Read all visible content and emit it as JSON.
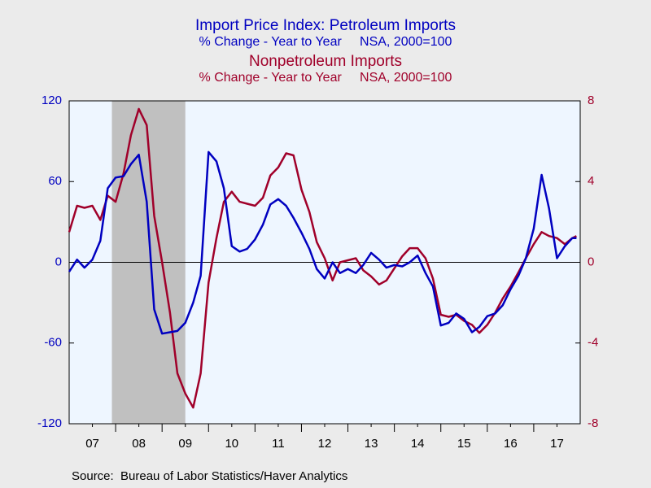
{
  "chart_data": {
    "type": "line",
    "source": "Source:  Bureau of Labor Statistics/Haver Analytics",
    "x": [
      2007.0,
      2007.17,
      2007.33,
      2007.5,
      2007.67,
      2007.83,
      2008.0,
      2008.17,
      2008.33,
      2008.5,
      2008.67,
      2008.83,
      2009.0,
      2009.17,
      2009.33,
      2009.5,
      2009.67,
      2009.83,
      2010.0,
      2010.17,
      2010.33,
      2010.5,
      2010.67,
      2010.83,
      2011.0,
      2011.17,
      2011.33,
      2011.5,
      2011.67,
      2011.83,
      2012.0,
      2012.17,
      2012.33,
      2012.5,
      2012.67,
      2012.83,
      2013.0,
      2013.17,
      2013.33,
      2013.5,
      2013.67,
      2013.83,
      2014.0,
      2014.17,
      2014.33,
      2014.5,
      2014.67,
      2014.83,
      2015.0,
      2015.17,
      2015.33,
      2015.5,
      2015.67,
      2015.83,
      2016.0,
      2016.17,
      2016.33,
      2016.5,
      2016.67,
      2016.83,
      2017.0,
      2017.17,
      2017.33,
      2017.5,
      2017.67,
      2017.83,
      2017.92
    ],
    "series": [
      {
        "name": "Import Price Index: Petroleum Imports",
        "subtitle": "% Change - Year to Year     NSA, 2000=100",
        "color": "#0000c0",
        "axis": "y",
        "values": [
          -7,
          2,
          -4,
          2,
          16,
          55,
          63,
          64,
          73,
          80,
          45,
          -35,
          -53,
          -52,
          -51,
          -45,
          -30,
          -10,
          82,
          75,
          55,
          12,
          8,
          10,
          17,
          28,
          43,
          47,
          42,
          33,
          22,
          10,
          -5,
          -12,
          0,
          -8,
          -5,
          -8,
          -2,
          7,
          2,
          -4,
          -2,
          -3,
          0,
          5,
          -8,
          -18,
          -47,
          -45,
          -38,
          -42,
          -52,
          -48,
          -40,
          -38,
          -32,
          -20,
          -10,
          3,
          25,
          65,
          40,
          3,
          12,
          18,
          18
        ]
      },
      {
        "name": "Nonpetroleum Imports",
        "subtitle": "% Change - Year to Year     NSA, 2000=100",
        "color": "#a0002a",
        "axis": "y2",
        "values": [
          1.5,
          2.8,
          2.7,
          2.8,
          2.1,
          3.3,
          3.0,
          4.4,
          6.3,
          7.6,
          6.8,
          2.3,
          0,
          -2.5,
          -5.5,
          -6.5,
          -7.2,
          -5.5,
          -1,
          1.2,
          3.0,
          3.5,
          3.0,
          2.9,
          2.8,
          3.2,
          4.3,
          4.7,
          5.4,
          5.3,
          3.6,
          2.5,
          1.0,
          0.2,
          -0.9,
          0.0,
          0.1,
          0.2,
          -0.4,
          -0.7,
          -1.1,
          -0.9,
          -0.3,
          0.3,
          0.7,
          0.7,
          0.2,
          -0.8,
          -2.6,
          -2.7,
          -2.6,
          -2.9,
          -3.1,
          -3.5,
          -3.1,
          -2.5,
          -1.8,
          -1.2,
          -0.5,
          0.2,
          0.9,
          1.5,
          1.3,
          1.2,
          0.9,
          1.2,
          1.3
        ]
      }
    ],
    "xlim": [
      2007,
      2018
    ],
    "xticks": [
      {
        "value": 2007,
        "label": "07"
      },
      {
        "value": 2008,
        "label": "08"
      },
      {
        "value": 2009,
        "label": "09"
      },
      {
        "value": 2010,
        "label": "10"
      },
      {
        "value": 2011,
        "label": "11"
      },
      {
        "value": 2012,
        "label": "12"
      },
      {
        "value": 2013,
        "label": "13"
      },
      {
        "value": 2014,
        "label": "14"
      },
      {
        "value": 2015,
        "label": "15"
      },
      {
        "value": 2016,
        "label": "16"
      },
      {
        "value": 2017,
        "label": "17"
      }
    ],
    "ylim": [
      -120,
      120
    ],
    "yticks": [
      -120,
      -60,
      0,
      60,
      120
    ],
    "y2lim": [
      -8,
      8
    ],
    "y2ticks": [
      -8,
      -4,
      0,
      4,
      8
    ],
    "shaded_regions": [
      [
        2007.92,
        2009.5
      ]
    ]
  }
}
